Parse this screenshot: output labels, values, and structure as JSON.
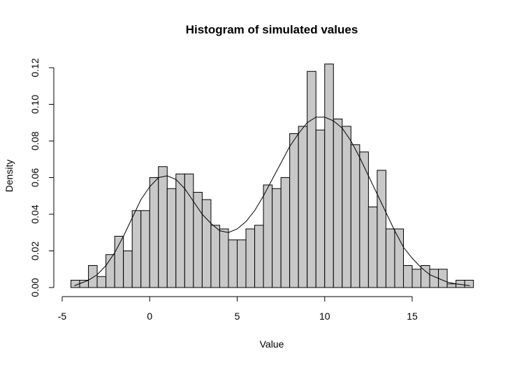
{
  "chart_data": {
    "type": "bar",
    "title": "Histogram of simulated values",
    "xlabel": "Value",
    "ylabel": "Density",
    "xlim": [
      -5,
      19
    ],
    "ylim": [
      0,
      0.125
    ],
    "x_ticks": [
      -5,
      0,
      5,
      10,
      15
    ],
    "x_tick_labels": [
      "-5",
      "0",
      "5",
      "10",
      "15"
    ],
    "y_ticks": [
      0.0,
      0.02,
      0.04,
      0.06,
      0.08,
      0.1,
      0.12
    ],
    "y_tick_labels": [
      "0.00",
      "0.02",
      "0.04",
      "0.06",
      "0.08",
      "0.10",
      "0.12"
    ],
    "bin_edges": [
      -4.5,
      -4.0,
      -3.5,
      -3.0,
      -2.5,
      -2.0,
      -1.5,
      -1.0,
      -0.5,
      0.0,
      0.5,
      1.0,
      1.5,
      2.0,
      2.5,
      3.0,
      3.5,
      4.0,
      4.5,
      5.0,
      5.5,
      6.0,
      6.5,
      7.0,
      7.5,
      8.0,
      8.5,
      9.0,
      9.5,
      10.0,
      10.5,
      11.0,
      11.5,
      12.0,
      12.5,
      13.0,
      13.5,
      14.0,
      14.5,
      15.0,
      15.5,
      16.0,
      16.5,
      17.0,
      17.5,
      18.0,
      18.5
    ],
    "densities": [
      0.004,
      0.004,
      0.012,
      0.006,
      0.018,
      0.028,
      0.02,
      0.042,
      0.042,
      0.06,
      0.066,
      0.054,
      0.062,
      0.062,
      0.052,
      0.048,
      0.034,
      0.032,
      0.026,
      0.026,
      0.032,
      0.034,
      0.056,
      0.054,
      0.06,
      0.084,
      0.088,
      0.118,
      0.086,
      0.122,
      0.092,
      0.088,
      0.078,
      0.074,
      0.044,
      0.064,
      0.032,
      0.032,
      0.012,
      0.01,
      0.012,
      0.01,
      0.01,
      0.002,
      0.004,
      0.004
    ],
    "density_curve": {
      "x": [
        -4.3,
        -3.5,
        -3.0,
        -2.5,
        -2.0,
        -1.5,
        -1.0,
        -0.5,
        0.0,
        0.5,
        1.0,
        1.5,
        2.0,
        2.5,
        3.0,
        3.5,
        4.0,
        4.5,
        5.0,
        5.5,
        6.0,
        6.5,
        7.0,
        7.5,
        8.0,
        8.5,
        9.0,
        9.5,
        10.0,
        10.5,
        11.0,
        11.5,
        12.0,
        12.5,
        13.0,
        13.5,
        14.0,
        14.5,
        15.0,
        15.5,
        16.0,
        16.5,
        17.0,
        17.5,
        18.3
      ],
      "y": [
        0.001,
        0.004,
        0.007,
        0.012,
        0.019,
        0.028,
        0.038,
        0.048,
        0.055,
        0.06,
        0.061,
        0.059,
        0.054,
        0.047,
        0.04,
        0.035,
        0.031,
        0.03,
        0.032,
        0.036,
        0.042,
        0.05,
        0.059,
        0.068,
        0.077,
        0.084,
        0.09,
        0.093,
        0.093,
        0.091,
        0.087,
        0.08,
        0.071,
        0.061,
        0.051,
        0.041,
        0.031,
        0.022,
        0.016,
        0.011,
        0.007,
        0.005,
        0.003,
        0.002,
        0.001
      ]
    }
  }
}
